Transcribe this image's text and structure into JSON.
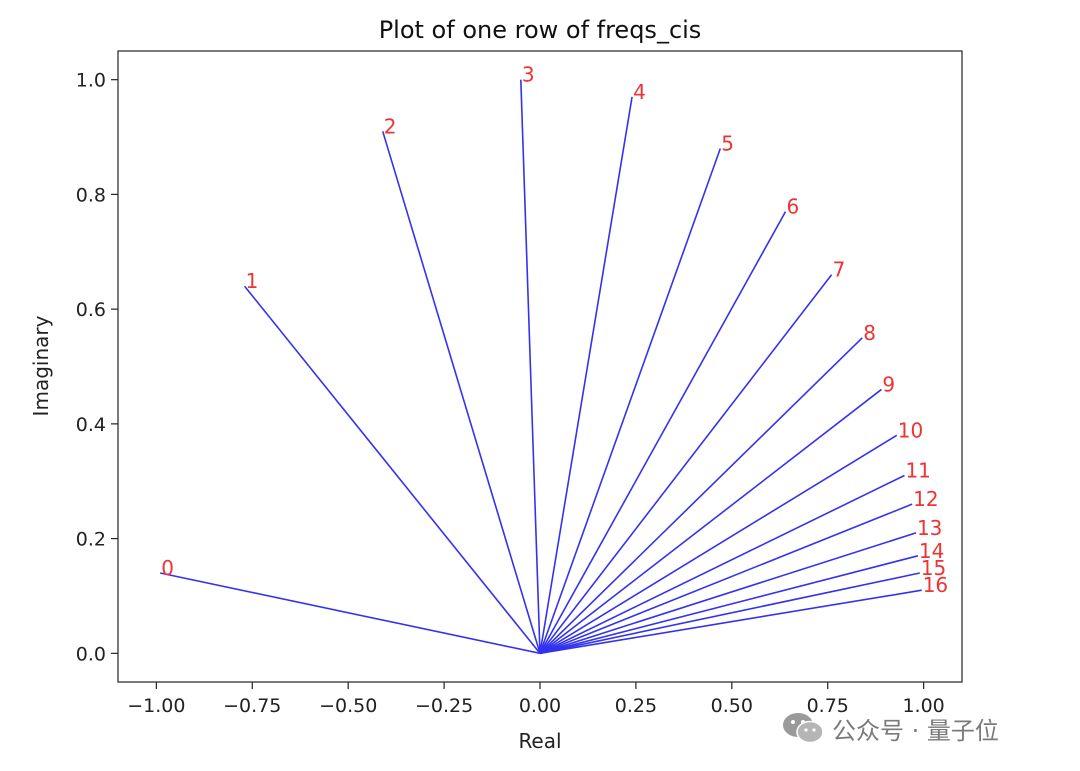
{
  "chart_data": {
    "type": "line",
    "title": "Plot of one row of freqs_cis",
    "xlabel": "Real",
    "ylabel": "Imaginary",
    "xlim": [
      -1.1,
      1.1
    ],
    "ylim": [
      -0.05,
      1.05
    ],
    "x_ticks": [
      "−1.00",
      "−0.75",
      "−0.50",
      "−0.25",
      "0.00",
      "0.25",
      "0.50",
      "0.75",
      "1.00"
    ],
    "x_tick_values": [
      -1.0,
      -0.75,
      -0.5,
      -0.25,
      0.0,
      0.25,
      0.5,
      0.75,
      1.0
    ],
    "y_ticks": [
      "0.0",
      "0.2",
      "0.4",
      "0.6",
      "0.8",
      "1.0"
    ],
    "y_tick_values": [
      0.0,
      0.2,
      0.4,
      0.6,
      0.8,
      1.0
    ],
    "line_color": "#3333ee",
    "label_color": "#ee3333",
    "origin": [
      0,
      0
    ],
    "points": [
      {
        "label": "0",
        "x": -0.99,
        "y": 0.14
      },
      {
        "label": "1",
        "x": -0.77,
        "y": 0.64
      },
      {
        "label": "2",
        "x": -0.41,
        "y": 0.91
      },
      {
        "label": "3",
        "x": -0.05,
        "y": 1.0
      },
      {
        "label": "4",
        "x": 0.24,
        "y": 0.97
      },
      {
        "label": "5",
        "x": 0.47,
        "y": 0.88
      },
      {
        "label": "6",
        "x": 0.64,
        "y": 0.77
      },
      {
        "label": "7",
        "x": 0.76,
        "y": 0.66
      },
      {
        "label": "8",
        "x": 0.84,
        "y": 0.55
      },
      {
        "label": "9",
        "x": 0.89,
        "y": 0.46
      },
      {
        "label": "10",
        "x": 0.93,
        "y": 0.38
      },
      {
        "label": "11",
        "x": 0.95,
        "y": 0.31
      },
      {
        "label": "12",
        "x": 0.97,
        "y": 0.26
      },
      {
        "label": "13",
        "x": 0.98,
        "y": 0.21
      },
      {
        "label": "14",
        "x": 0.985,
        "y": 0.17
      },
      {
        "label": "15",
        "x": 0.99,
        "y": 0.14
      },
      {
        "label": "16",
        "x": 0.995,
        "y": 0.11
      }
    ]
  },
  "watermark": {
    "text": "公众号 · 量子位",
    "icon": "wechat-icon"
  }
}
